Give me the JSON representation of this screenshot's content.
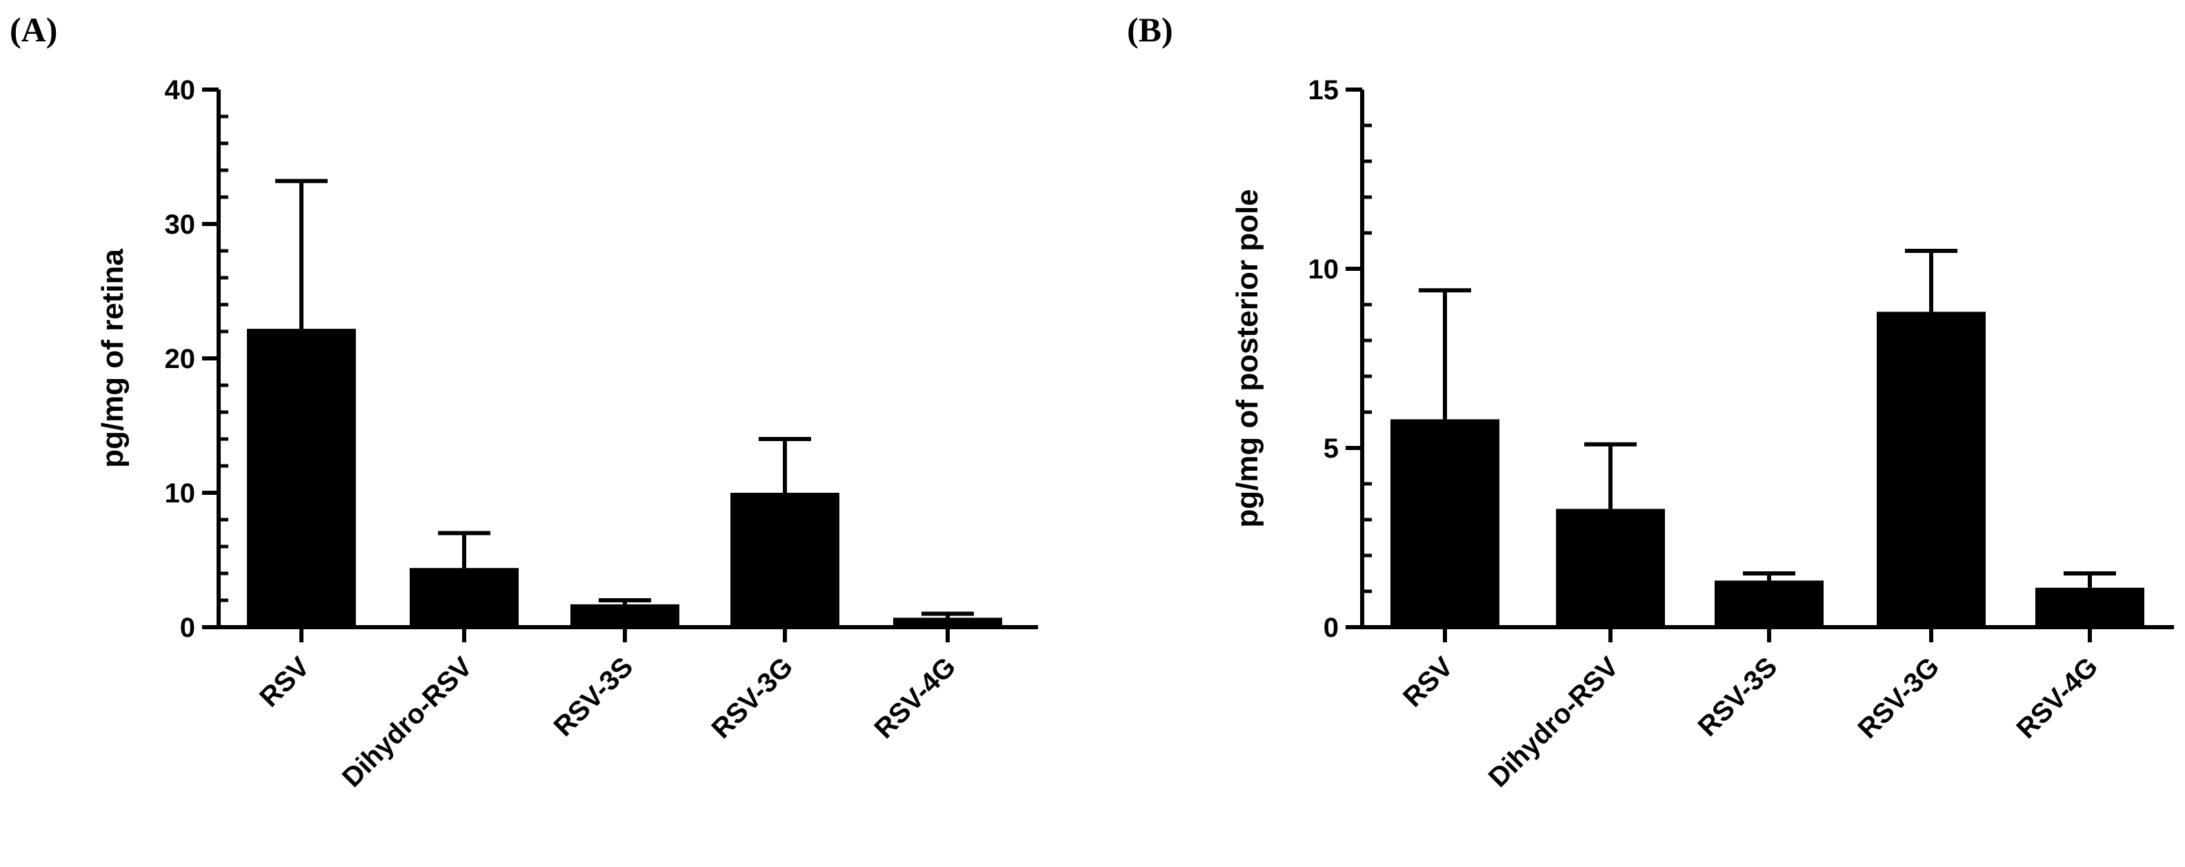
{
  "chart_data": [
    {
      "type": "bar",
      "panel_label": "(A)",
      "categories": [
        "RSV",
        "Dihydro-RSV",
        "RSV-3S",
        "RSV-3G",
        "RSV-4G"
      ],
      "values": [
        22.2,
        4.4,
        1.7,
        10.0,
        0.7
      ],
      "error_upper": [
        33.2,
        7.0,
        2.0,
        14.0,
        1.0
      ],
      "ylabel": "pg/mg of retina",
      "ylim": [
        0,
        40
      ],
      "yticks": [
        0,
        10,
        20,
        30,
        40
      ],
      "ytick_labels": [
        "0",
        "10",
        "20",
        "30",
        "40"
      ],
      "minor_tick_step": 2,
      "bar_color": "#000000"
    },
    {
      "type": "bar",
      "panel_label": "(B)",
      "categories": [
        "RSV",
        "Dihydro-RSV",
        "RSV-3S",
        "RSV-3G",
        "RSV-4G"
      ],
      "values": [
        5.8,
        3.3,
        1.3,
        8.8,
        1.1
      ],
      "error_upper": [
        9.4,
        5.1,
        1.5,
        10.5,
        1.5
      ],
      "ylabel": "pg/mg of posterior pole",
      "ylim": [
        0,
        15
      ],
      "yticks": [
        0,
        5,
        10,
        15
      ],
      "ytick_labels": [
        "0",
        "5",
        "10",
        "15"
      ],
      "minor_tick_step": 1,
      "bar_color": "#000000"
    }
  ]
}
